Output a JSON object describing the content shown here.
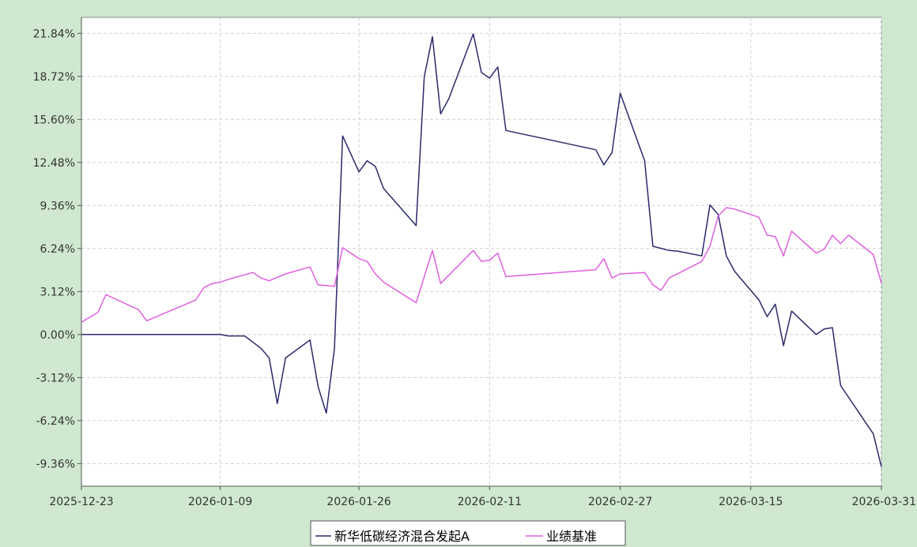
{
  "chart_data": {
    "type": "line",
    "x_ticks": [
      "2025-12-23",
      "2026-01-09",
      "2026-01-26",
      "2026-02-11",
      "2026-02-27",
      "2026-03-15",
      "2026-03-31"
    ],
    "y_ticks": [
      "21.84%",
      "18.72%",
      "15.60%",
      "12.48%",
      "9.36%",
      "6.24%",
      "3.12%",
      "0.00%",
      "-3.12%",
      "-6.24%",
      "-9.36%"
    ],
    "ylim": [
      -11.0,
      23.0
    ],
    "grid": true,
    "legend_position": "bottom-center",
    "series": [
      {
        "name": "新华低碳经济混合发起A",
        "color": "#2a2a6b",
        "points": [
          [
            "2025-12-23",
            0.0
          ],
          [
            "2026-01-09",
            0.0
          ],
          [
            "2026-01-10",
            -0.1
          ],
          [
            "2026-01-12",
            -0.1
          ],
          [
            "2026-01-14",
            -1.0
          ],
          [
            "2026-01-15",
            -1.7
          ],
          [
            "2026-01-16",
            -5.0
          ],
          [
            "2026-01-17",
            -1.7
          ],
          [
            "2026-01-20",
            -0.4
          ],
          [
            "2026-01-21",
            -3.8
          ],
          [
            "2026-01-22",
            -5.7
          ],
          [
            "2026-01-23",
            -1.0
          ],
          [
            "2026-01-24",
            14.4
          ],
          [
            "2026-01-26",
            11.8
          ],
          [
            "2026-01-27",
            12.6
          ],
          [
            "2026-01-28",
            12.2
          ],
          [
            "2026-01-29",
            10.6
          ],
          [
            "2026-02-02",
            7.9
          ],
          [
            "2026-02-03",
            18.7
          ],
          [
            "2026-02-04",
            21.6
          ],
          [
            "2026-02-05",
            16.0
          ],
          [
            "2026-02-06",
            17.1
          ],
          [
            "2026-02-09",
            21.8
          ],
          [
            "2026-02-10",
            19.0
          ],
          [
            "2026-02-11",
            18.6
          ],
          [
            "2026-02-12",
            19.4
          ],
          [
            "2026-02-13",
            14.8
          ],
          [
            "2026-02-24",
            13.4
          ],
          [
            "2026-02-25",
            12.3
          ],
          [
            "2026-02-26",
            13.2
          ],
          [
            "2026-02-27",
            17.5
          ],
          [
            "2026-03-02",
            12.6
          ],
          [
            "2026-03-03",
            6.4
          ],
          [
            "2026-03-05",
            6.1
          ],
          [
            "2026-03-06",
            6.05
          ],
          [
            "2026-03-09",
            5.7
          ],
          [
            "2026-03-10",
            9.4
          ],
          [
            "2026-03-11",
            8.7
          ],
          [
            "2026-03-12",
            5.7
          ],
          [
            "2026-03-13",
            4.6
          ],
          [
            "2026-03-16",
            2.5
          ],
          [
            "2026-03-17",
            1.3
          ],
          [
            "2026-03-18",
            2.2
          ],
          [
            "2026-03-19",
            -0.8
          ],
          [
            "2026-03-20",
            1.7
          ],
          [
            "2026-03-23",
            0.0
          ],
          [
            "2026-03-24",
            0.4
          ],
          [
            "2026-03-25",
            0.5
          ],
          [
            "2026-03-26",
            -3.7
          ],
          [
            "2026-03-30",
            -7.2
          ],
          [
            "2026-03-31",
            -9.6
          ]
        ]
      },
      {
        "name": "业绩基准",
        "color": "#e060e0",
        "points": [
          [
            "2025-12-23",
            0.9
          ],
          [
            "2025-12-25",
            1.6
          ],
          [
            "2025-12-26",
            2.9
          ],
          [
            "2025-12-30",
            1.8
          ],
          [
            "2025-12-31",
            1.0
          ],
          [
            "2026-01-06",
            2.5
          ],
          [
            "2026-01-07",
            3.4
          ],
          [
            "2026-01-08",
            3.7
          ],
          [
            "2026-01-09",
            3.8
          ],
          [
            "2026-01-10",
            4.0
          ],
          [
            "2026-01-13",
            4.5
          ],
          [
            "2026-01-14",
            4.1
          ],
          [
            "2026-01-15",
            3.9
          ],
          [
            "2026-01-17",
            4.4
          ],
          [
            "2026-01-20",
            4.9
          ],
          [
            "2026-01-21",
            3.6
          ],
          [
            "2026-01-23",
            3.5
          ],
          [
            "2026-01-24",
            6.3
          ],
          [
            "2026-01-26",
            5.5
          ],
          [
            "2026-01-27",
            5.3
          ],
          [
            "2026-01-28",
            4.4
          ],
          [
            "2026-01-29",
            3.8
          ],
          [
            "2026-02-02",
            2.3
          ],
          [
            "2026-02-04",
            6.1
          ],
          [
            "2026-02-05",
            3.7
          ],
          [
            "2026-02-06",
            4.3
          ],
          [
            "2026-02-09",
            6.1
          ],
          [
            "2026-02-10",
            5.3
          ],
          [
            "2026-02-11",
            5.4
          ],
          [
            "2026-02-12",
            5.9
          ],
          [
            "2026-02-13",
            4.2
          ],
          [
            "2026-02-24",
            4.7
          ],
          [
            "2026-02-25",
            5.5
          ],
          [
            "2026-02-26",
            4.1
          ],
          [
            "2026-02-27",
            4.4
          ],
          [
            "2026-03-02",
            4.5
          ],
          [
            "2026-03-03",
            3.6
          ],
          [
            "2026-03-04",
            3.2
          ],
          [
            "2026-03-05",
            4.1
          ],
          [
            "2026-03-09",
            5.3
          ],
          [
            "2026-03-10",
            6.4
          ],
          [
            "2026-03-11",
            8.6
          ],
          [
            "2026-03-12",
            9.2
          ],
          [
            "2026-03-13",
            9.1
          ],
          [
            "2026-03-16",
            8.5
          ],
          [
            "2026-03-17",
            7.2
          ],
          [
            "2026-03-18",
            7.1
          ],
          [
            "2026-03-19",
            5.7
          ],
          [
            "2026-03-20",
            7.5
          ],
          [
            "2026-03-23",
            5.9
          ],
          [
            "2026-03-24",
            6.2
          ],
          [
            "2026-03-25",
            7.2
          ],
          [
            "2026-03-26",
            6.6
          ],
          [
            "2026-03-27",
            7.2
          ],
          [
            "2026-03-30",
            5.8
          ],
          [
            "2026-03-31",
            3.7
          ]
        ]
      }
    ]
  }
}
